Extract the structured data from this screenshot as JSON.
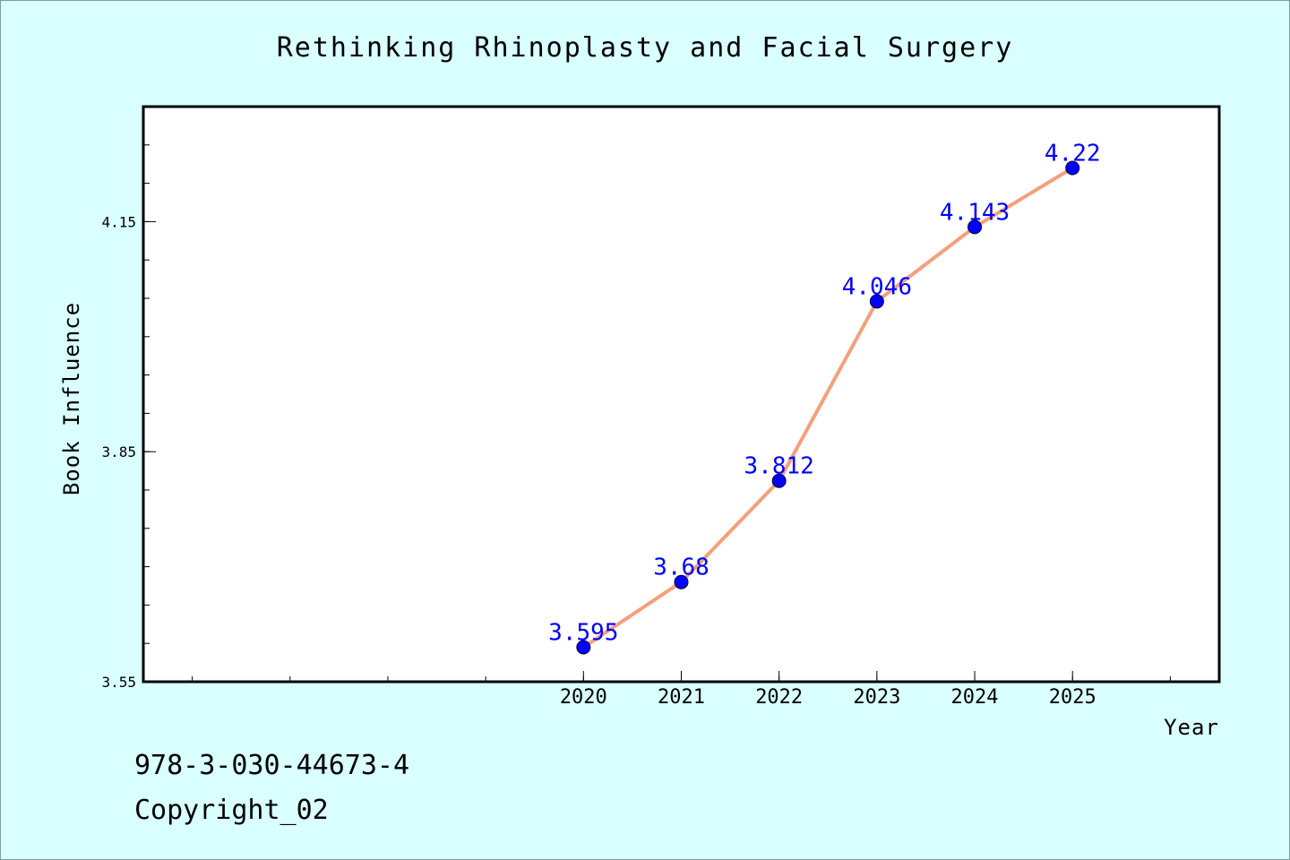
{
  "chart_data": {
    "type": "line",
    "title": "Rethinking Rhinoplasty and Facial Surgery",
    "xlabel": "Year",
    "ylabel": "Book Influence",
    "x": [
      2020,
      2021,
      2022,
      2023,
      2024,
      2025
    ],
    "series": [
      {
        "values": [
          3.595,
          3.68,
          3.812,
          4.046,
          4.143,
          4.22
        ],
        "labels": [
          "3.595",
          "3.68",
          "3.812",
          "4.046",
          "4.143",
          "4.22"
        ],
        "line_color": "#f4a07c",
        "marker_color": "#0000ff"
      }
    ],
    "xlim": [
      2015.5,
      2026.5
    ],
    "ylim": [
      3.55,
      4.3
    ],
    "y_ticks": [
      {
        "value": 3.55,
        "label": "3.55"
      },
      {
        "value": 3.85,
        "label": "3.85"
      },
      {
        "value": 4.15,
        "label": "4.15"
      }
    ],
    "x_ticks": [
      {
        "value": 2020,
        "label": "2020"
      },
      {
        "value": 2021,
        "label": "2021"
      },
      {
        "value": 2022,
        "label": "2022"
      },
      {
        "value": 2023,
        "label": "2023"
      },
      {
        "value": 2024,
        "label": "2024"
      },
      {
        "value": 2025,
        "label": "2025"
      }
    ],
    "grid": false,
    "background_color": "#d9ffff",
    "plot_background_color": "#ffffff"
  },
  "footer": {
    "isbn": "978-3-030-44673-4",
    "copyright": "Copyright_02"
  }
}
